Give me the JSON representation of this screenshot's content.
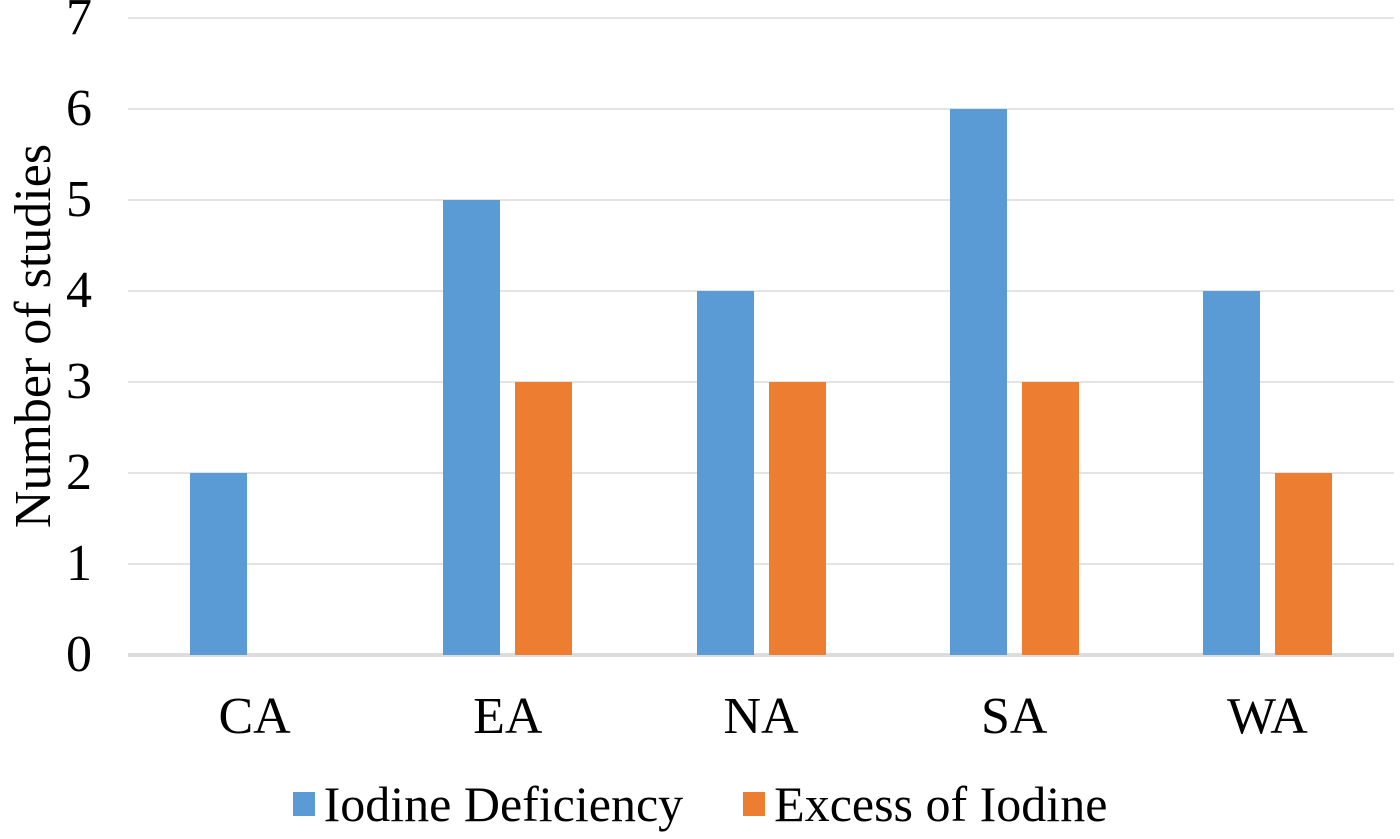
{
  "chart_data": {
    "type": "bar",
    "title": "",
    "categories": [
      "CA",
      "EA",
      "NA",
      "SA",
      "WA"
    ],
    "series": [
      {
        "name": "Iodine Deficiency",
        "color": "#5B9BD5",
        "values": [
          2,
          5,
          4,
          6,
          4
        ]
      },
      {
        "name": "Excess of Iodine",
        "color": "#ED7D31",
        "values": [
          0,
          3,
          3,
          3,
          2
        ]
      }
    ],
    "xlabel": "",
    "ylabel": "Number of studies",
    "ylim": [
      0,
      7
    ],
    "yticks": [
      0,
      1,
      2,
      3,
      4,
      5,
      6,
      7
    ],
    "grid": true,
    "legend_position": "bottom",
    "colors": {
      "gridline": "#E4E4E4",
      "axis_line": "#DCDCDC",
      "text": "#000000",
      "background": "#FFFFFF"
    }
  }
}
